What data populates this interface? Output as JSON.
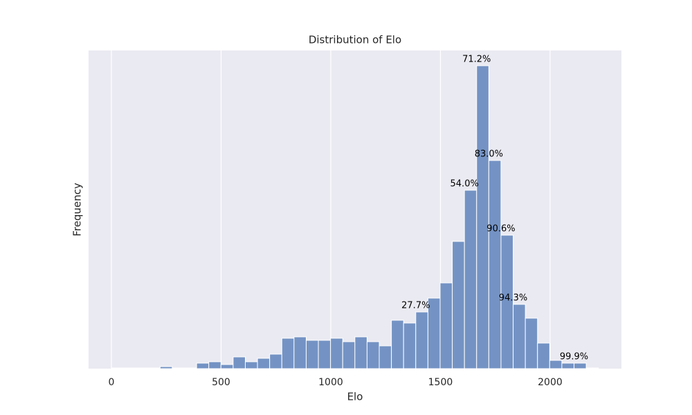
{
  "chart_data": {
    "type": "histogram",
    "title": "Distribution of Elo",
    "x_label": "Elo",
    "y_label": "Frequency",
    "bins": [
      0,
      55.5,
      111,
      166.5,
      222,
      277.5,
      333,
      388.5,
      444,
      499.5,
      555,
      610.5,
      666,
      721.5,
      777,
      832.5,
      888,
      943.5,
      999,
      1054.5,
      1110,
      1165.5,
      1221,
      1276.5,
      1332,
      1387.5,
      1443,
      1498.5,
      1554,
      1609.5,
      1665,
      1720.5,
      1776,
      1831.5,
      1887,
      1942.5,
      1998,
      2053.5,
      2109,
      2164.5,
      2220
    ],
    "values": [
      1,
      1,
      1,
      1,
      3,
      1,
      1,
      8,
      10,
      6,
      17,
      10,
      15,
      21,
      44,
      46,
      41,
      41,
      44,
      39,
      46,
      39,
      33,
      70,
      66,
      82,
      102,
      124,
      184,
      258,
      438,
      301,
      193,
      93,
      73,
      37,
      12,
      8,
      8,
      1
    ],
    "color": "#7493c4",
    "xlim": [
      -104,
      2325
    ],
    "xticks": [
      0,
      500,
      1000,
      1500,
      2000
    ],
    "ylim": [
      0,
      460
    ],
    "grid": true,
    "annotations": [
      {
        "text": "27.7%",
        "x": 1387.5,
        "y": 82
      },
      {
        "text": "54.0%",
        "x": 1609.5,
        "y": 258
      },
      {
        "text": "71.2%",
        "x": 1665,
        "y": 438
      },
      {
        "text": "83.0%",
        "x": 1720.5,
        "y": 301
      },
      {
        "text": "90.6%",
        "x": 1776,
        "y": 193
      },
      {
        "text": "94.3%",
        "x": 1831.5,
        "y": 93
      },
      {
        "text": "99.9%",
        "x": 2109,
        "y": 8
      }
    ]
  }
}
